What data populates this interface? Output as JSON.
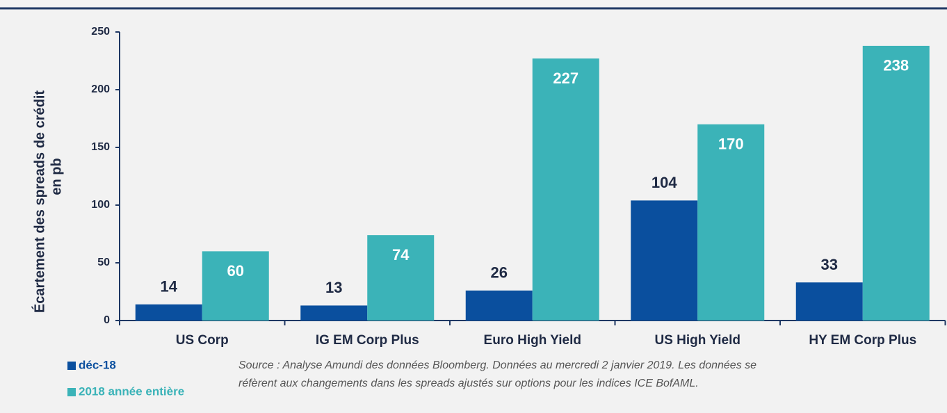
{
  "chart_data": {
    "type": "bar",
    "ylabel": [
      "Écartement des spreads de crédit",
      "en pb"
    ],
    "categories": [
      "US Corp",
      "IG EM Corp Plus",
      "Euro High Yield",
      "US High Yield",
      "HY EM Corp Plus"
    ],
    "series": [
      {
        "name": "déc-18",
        "color": "#0a4f9e",
        "values": [
          14,
          13,
          26,
          104,
          33
        ]
      },
      {
        "name": "2018 année entière",
        "color": "#3bb3b8",
        "values": [
          60,
          74,
          227,
          170,
          238
        ]
      }
    ],
    "ylim": [
      0,
      250
    ],
    "yticks": [
      0,
      50,
      100,
      150,
      200,
      250
    ],
    "source": [
      "Source : Analyse Amundi des données Bloomberg. Données au mercredi 2 janvier 2019. Les données se",
      "réfèrent aux changements dans les spreads ajustés sur options pour les indices ICE BofAML."
    ]
  }
}
